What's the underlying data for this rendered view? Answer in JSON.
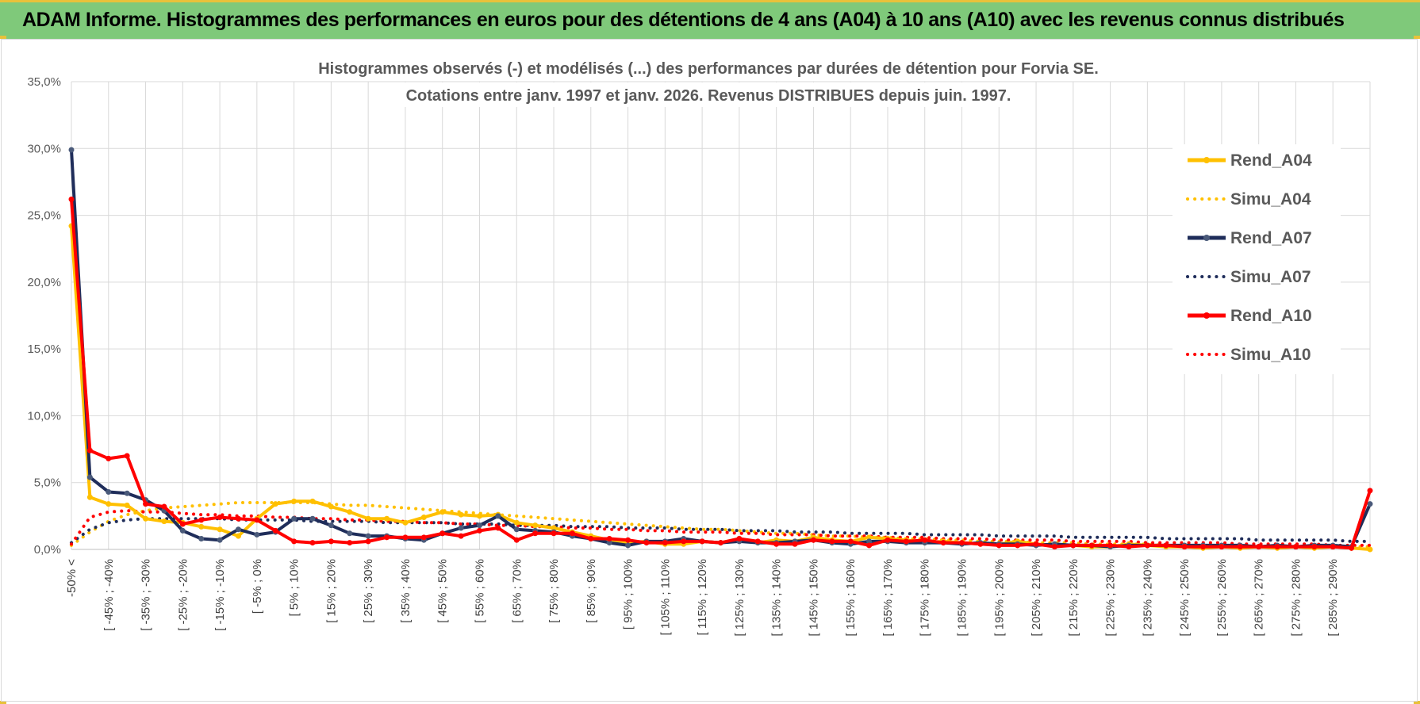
{
  "header": {
    "title": "ADAM Informe. Histogrammes des performances en euros pour des détentions de 4 ans (A04) à 10 ans (A10) avec les revenus connus distribués"
  },
  "chart_data": {
    "type": "line",
    "title_line1": "Histogrammes observés (-) et modélisés (...) des performances par durées de détention pour Forvia SE.",
    "title_line2": "Cotations entre janv. 1997 et janv. 2026. Revenus DISTRIBUES depuis juin. 1997.",
    "ylim": [
      0,
      35
    ],
    "yticks": [
      "0,0%",
      "5,0%",
      "10,0%",
      "15,0%",
      "20,0%",
      "25,0%",
      "30,0%",
      "35,0%"
    ],
    "x_labels": [
      "-50% <",
      "[ -45% ; -40%",
      "[ -35% ; -30%",
      "[ -25% ; -20%",
      "[ -15% ; -10%",
      "[ -5% ; 0%",
      "[ 5% ; 10%",
      "[ 15% ; 20%",
      "[ 25% ; 30%",
      "[ 35% ; 40%",
      "[ 45% ; 50%",
      "[ 55% ; 60%",
      "[ 65% ; 70%",
      "[ 75% ; 80%",
      "[ 85% ; 90%",
      "[ 95% ; 100%",
      "[ 105% ; 110%",
      "[ 115% ; 120%",
      "[ 125% ; 130%",
      "[ 135% ; 140%",
      "[ 145% ; 150%",
      "[ 155% ; 160%",
      "[ 165% ; 170%",
      "[ 175% ; 180%",
      "[ 185% ; 190%",
      "[ 195% ; 200%",
      "[ 205% ; 210%",
      "[ 215% ; 220%",
      "[ 225% ; 230%",
      "[ 235% ; 240%",
      "[ 245% ; 250%",
      "[ 255% ; 260%",
      "[ 265% ; 270%",
      "[ 275% ; 280%",
      "[ 285% ; 290%"
    ],
    "n_points": 71,
    "series": [
      {
        "name": "Rend_A04",
        "color": "#ffc000",
        "style": "solid",
        "markers": true,
        "values": [
          24.2,
          3.9,
          3.4,
          3.3,
          2.3,
          2.1,
          2.0,
          1.7,
          1.5,
          1.0,
          2.3,
          3.4,
          3.6,
          3.6,
          3.2,
          2.8,
          2.3,
          2.3,
          2.0,
          2.4,
          2.8,
          2.6,
          2.5,
          2.6,
          2.0,
          1.8,
          1.6,
          1.3,
          1.0,
          0.7,
          0.5,
          0.6,
          0.4,
          0.4,
          0.6,
          0.5,
          0.8,
          0.5,
          0.7,
          0.6,
          0.9,
          0.7,
          0.6,
          0.9,
          0.8,
          0.7,
          0.5,
          0.6,
          0.5,
          0.4,
          0.4,
          0.6,
          0.4,
          0.3,
          0.3,
          0.2,
          0.2,
          0.4,
          0.3,
          0.2,
          0.2,
          0.1,
          0.2,
          0.1,
          0.2,
          0.1,
          0.2,
          0.1,
          0.2,
          0.1,
          0.0
        ]
      },
      {
        "name": "Simu_A04",
        "color": "#ffc000",
        "style": "dotted",
        "markers": false,
        "values": [
          0.3,
          1.3,
          2.1,
          2.6,
          2.9,
          3.1,
          3.2,
          3.3,
          3.4,
          3.5,
          3.5,
          3.5,
          3.5,
          3.5,
          3.4,
          3.3,
          3.3,
          3.2,
          3.1,
          3.0,
          2.9,
          2.8,
          2.7,
          2.6,
          2.5,
          2.4,
          2.3,
          2.2,
          2.1,
          2.0,
          1.9,
          1.8,
          1.7,
          1.6,
          1.5,
          1.5,
          1.4,
          1.3,
          1.2,
          1.2,
          1.1,
          1.0,
          1.0,
          0.9,
          0.9,
          0.8,
          0.8,
          0.7,
          0.7,
          0.6,
          0.6,
          0.6,
          0.5,
          0.5,
          0.5,
          0.4,
          0.4,
          0.4,
          0.4,
          0.3,
          0.3,
          0.3,
          0.3,
          0.3,
          0.2,
          0.2,
          0.2,
          0.2,
          0.2,
          0.2,
          0.2
        ]
      },
      {
        "name": "Rend_A07",
        "color": "#1f2d5a",
        "style": "solid",
        "markers": true,
        "values": [
          29.9,
          5.4,
          4.3,
          4.2,
          3.7,
          2.9,
          1.4,
          0.8,
          0.7,
          1.5,
          1.1,
          1.3,
          2.3,
          2.3,
          1.8,
          1.2,
          1.0,
          1.0,
          0.8,
          0.7,
          1.2,
          1.6,
          1.8,
          2.5,
          1.5,
          1.4,
          1.3,
          1.0,
          0.8,
          0.5,
          0.3,
          0.6,
          0.6,
          0.8,
          0.6,
          0.5,
          0.6,
          0.5,
          0.5,
          0.6,
          0.7,
          0.5,
          0.4,
          0.6,
          0.6,
          0.5,
          0.5,
          0.5,
          0.4,
          0.5,
          0.4,
          0.4,
          0.3,
          0.4,
          0.3,
          0.3,
          0.2,
          0.3,
          0.3,
          0.3,
          0.3,
          0.3,
          0.3,
          0.3,
          0.2,
          0.3,
          0.2,
          0.3,
          0.3,
          0.2,
          3.4
        ]
      },
      {
        "name": "Simu_A07",
        "color": "#1f2d5a",
        "style": "dotted",
        "markers": false,
        "values": [
          0.5,
          1.5,
          2.0,
          2.2,
          2.3,
          2.3,
          2.3,
          2.3,
          2.3,
          2.2,
          2.2,
          2.2,
          2.2,
          2.1,
          2.1,
          2.1,
          2.1,
          2.0,
          2.0,
          2.0,
          2.0,
          1.9,
          1.9,
          1.9,
          1.8,
          1.8,
          1.8,
          1.7,
          1.7,
          1.7,
          1.6,
          1.6,
          1.6,
          1.5,
          1.5,
          1.5,
          1.4,
          1.4,
          1.4,
          1.3,
          1.3,
          1.3,
          1.2,
          1.2,
          1.2,
          1.2,
          1.1,
          1.1,
          1.1,
          1.1,
          1.0,
          1.0,
          1.0,
          1.0,
          0.9,
          0.9,
          0.9,
          0.9,
          0.9,
          0.8,
          0.8,
          0.8,
          0.8,
          0.8,
          0.7,
          0.7,
          0.7,
          0.7,
          0.7,
          0.6,
          0.6
        ]
      },
      {
        "name": "Rend_A10",
        "color": "#ff0000",
        "style": "solid",
        "markers": true,
        "values": [
          26.2,
          7.4,
          6.8,
          7.0,
          3.4,
          3.2,
          1.9,
          2.2,
          2.4,
          2.3,
          2.2,
          1.4,
          0.6,
          0.5,
          0.6,
          0.5,
          0.6,
          0.9,
          0.9,
          0.9,
          1.2,
          1.0,
          1.4,
          1.6,
          0.7,
          1.2,
          1.2,
          1.2,
          0.8,
          0.8,
          0.7,
          0.5,
          0.5,
          0.6,
          0.6,
          0.5,
          0.8,
          0.6,
          0.4,
          0.4,
          0.7,
          0.6,
          0.6,
          0.3,
          0.7,
          0.6,
          0.7,
          0.5,
          0.5,
          0.4,
          0.3,
          0.3,
          0.4,
          0.2,
          0.3,
          0.3,
          0.3,
          0.2,
          0.3,
          0.3,
          0.2,
          0.2,
          0.2,
          0.2,
          0.2,
          0.2,
          0.2,
          0.2,
          0.2,
          0.1,
          4.4
        ]
      },
      {
        "name": "Simu_A10",
        "color": "#ff0000",
        "style": "dotted",
        "markers": false,
        "values": [
          0.4,
          2.4,
          2.8,
          2.9,
          2.8,
          2.8,
          2.7,
          2.6,
          2.6,
          2.5,
          2.5,
          2.4,
          2.4,
          2.3,
          2.3,
          2.2,
          2.2,
          2.1,
          2.1,
          2.0,
          2.0,
          1.9,
          1.9,
          1.8,
          1.8,
          1.7,
          1.7,
          1.6,
          1.6,
          1.5,
          1.5,
          1.4,
          1.4,
          1.3,
          1.3,
          1.3,
          1.2,
          1.2,
          1.1,
          1.1,
          1.1,
          1.0,
          1.0,
          1.0,
          0.9,
          0.9,
          0.9,
          0.8,
          0.8,
          0.8,
          0.7,
          0.7,
          0.7,
          0.7,
          0.6,
          0.6,
          0.6,
          0.6,
          0.5,
          0.5,
          0.5,
          0.5,
          0.5,
          0.4,
          0.4,
          0.4,
          0.4,
          0.4,
          0.3,
          0.3,
          0.3
        ]
      }
    ]
  }
}
